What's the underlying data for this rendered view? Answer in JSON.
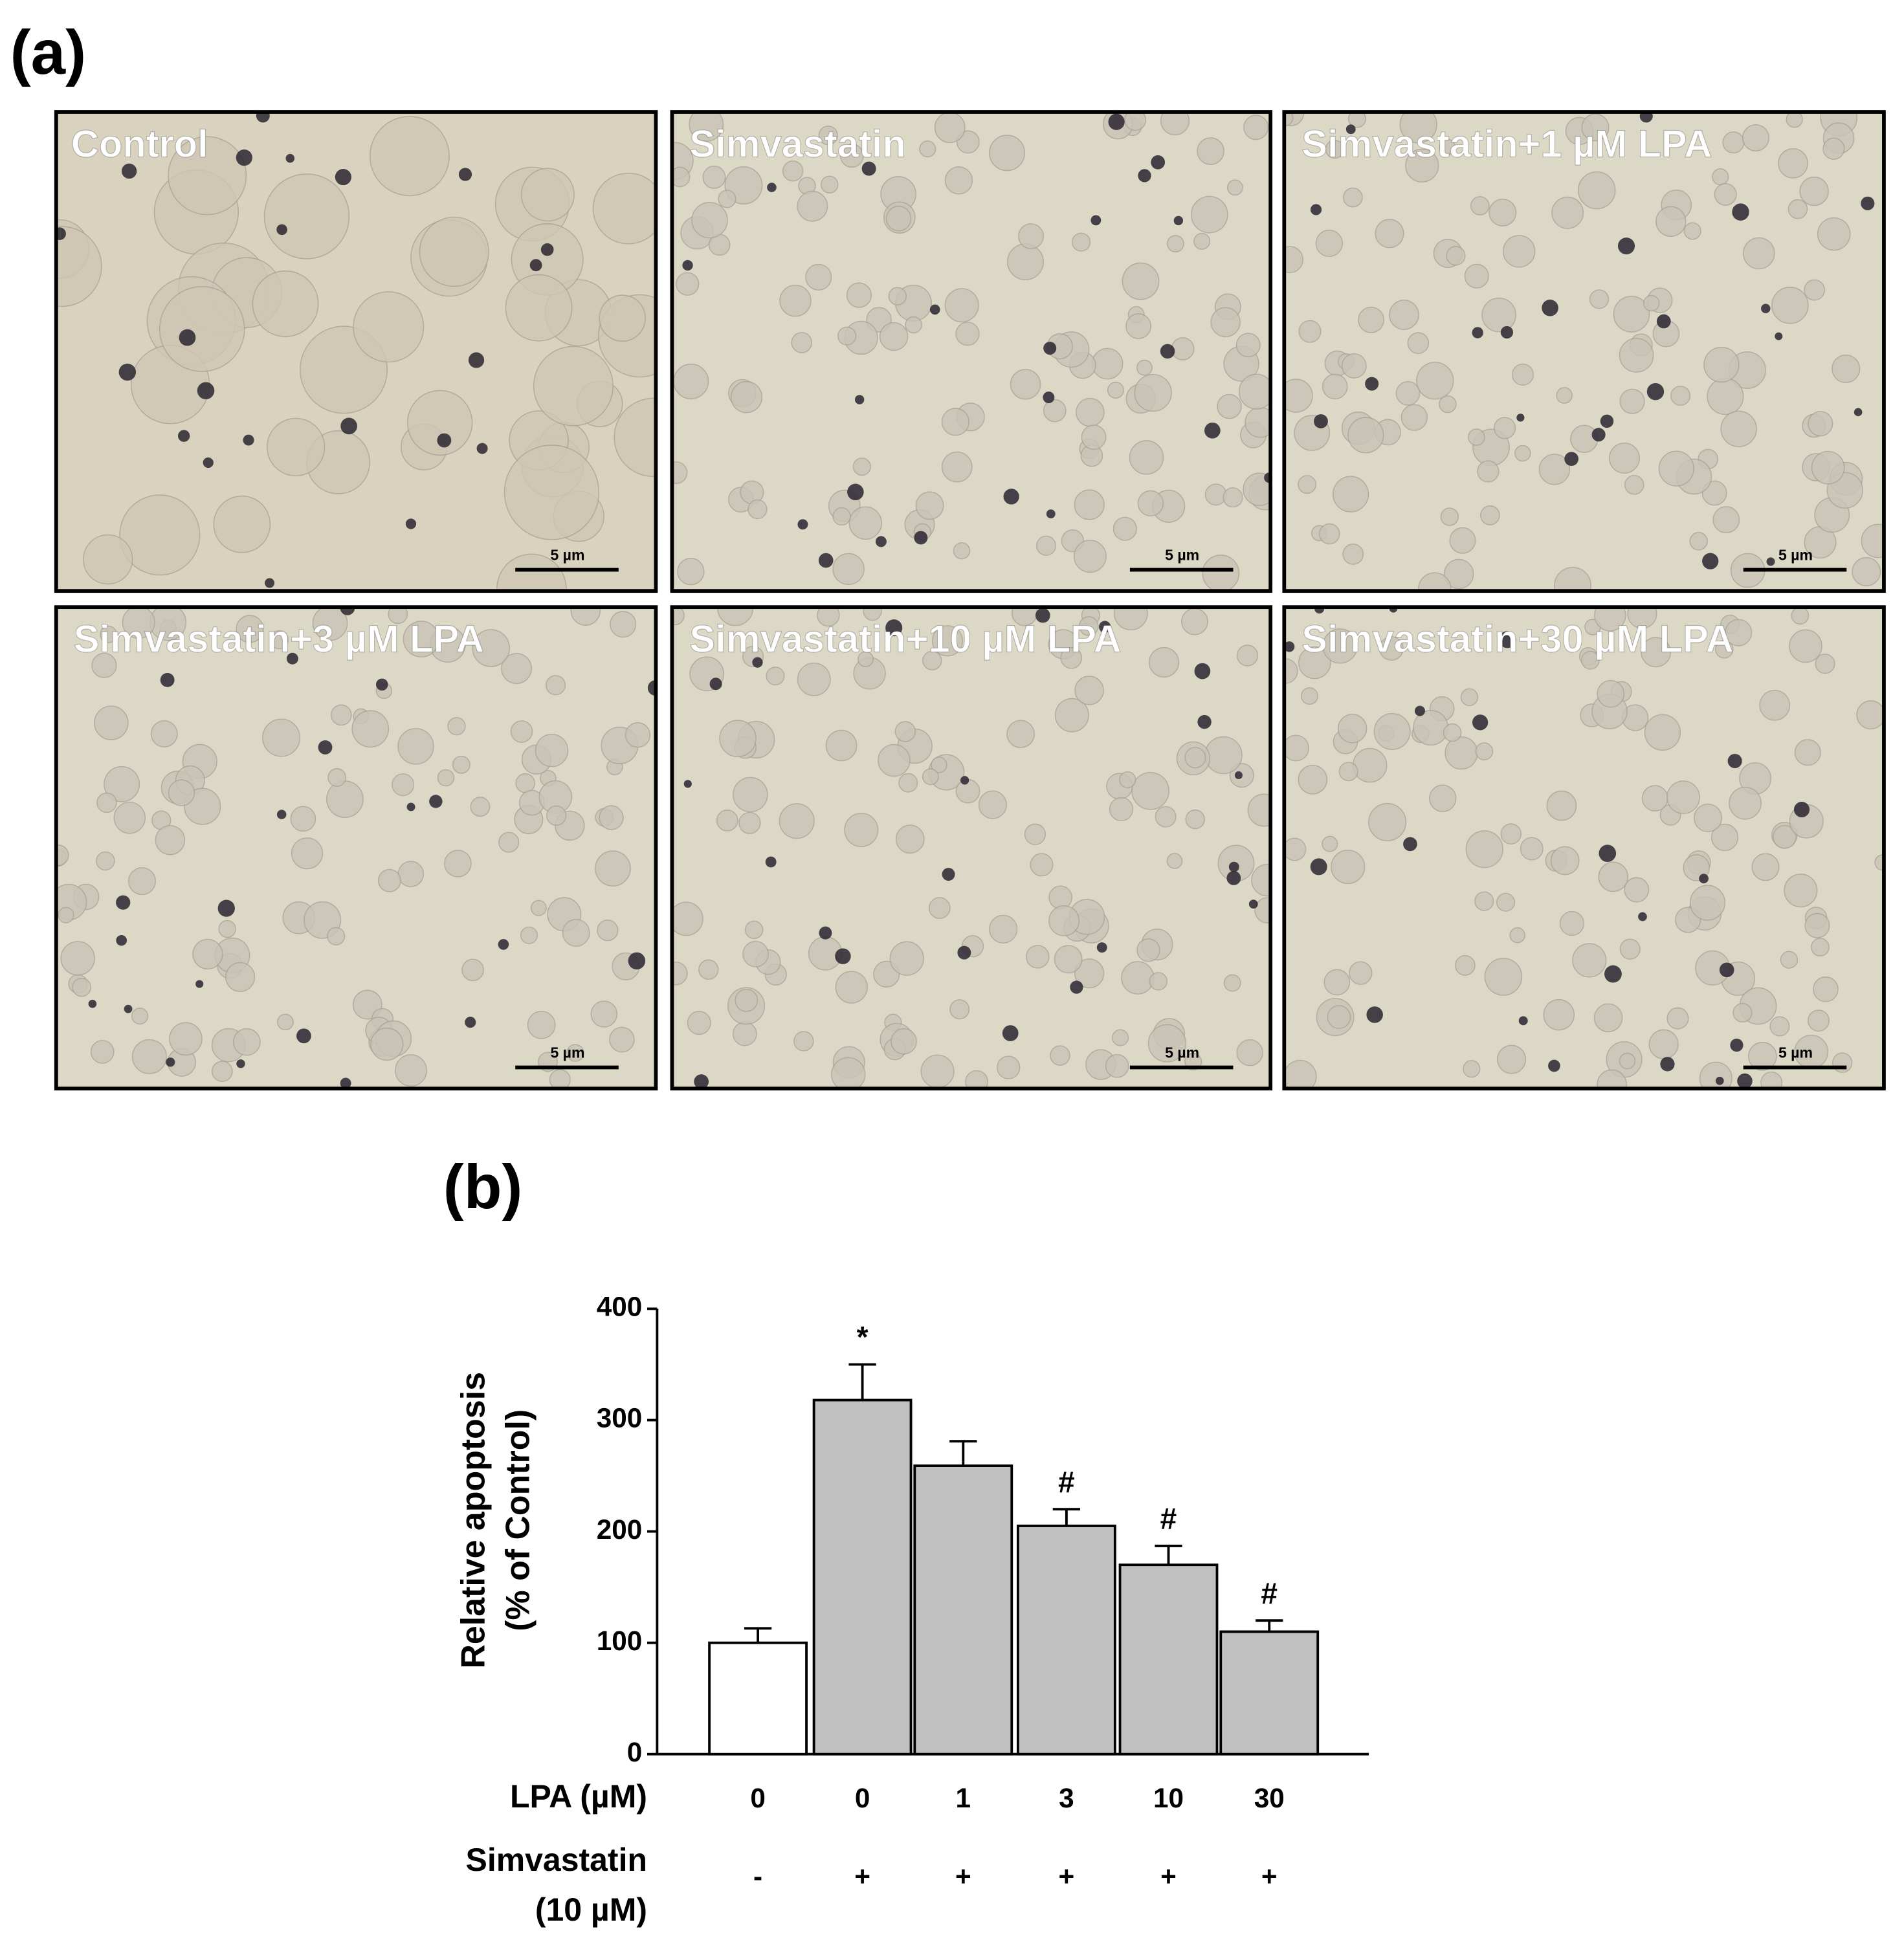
{
  "panel_a": {
    "label": "(a)",
    "images": [
      {
        "label": "Control",
        "scale_bar": "5 µm"
      },
      {
        "label": "Simvastatin",
        "scale_bar": "5 µm"
      },
      {
        "label": "Simvastatin+1 µM LPA",
        "scale_bar": "5 µm"
      },
      {
        "label": "Simvastatin+3 µM LPA",
        "scale_bar": "5 µm"
      },
      {
        "label": "Simvastatin+10 µM LPA",
        "scale_bar": "5 µm"
      },
      {
        "label": "Simvastatin+30 µM LPA",
        "scale_bar": "5 µm"
      }
    ]
  },
  "chart_data": {
    "type": "bar",
    "label": "(b)",
    "ylabel": [
      "Relative apoptosis",
      "(% of Control)"
    ],
    "lpa_label": "LPA (µM)",
    "simvastatin_label": [
      "Simvastatin",
      "(10 µM)"
    ],
    "categories": [
      "0",
      "0",
      "1",
      "3",
      "10",
      "30"
    ],
    "simvastatin": [
      "-",
      "+",
      "+",
      "+",
      "+",
      "+"
    ],
    "values": [
      100,
      318,
      259,
      205,
      170,
      110
    ],
    "errors": [
      13,
      32,
      22,
      15,
      17,
      10
    ],
    "annotations": [
      null,
      "*",
      null,
      "#",
      "#",
      "#"
    ],
    "colors": [
      "#ffffff",
      "#c0c0c0",
      "#c0c0c0",
      "#c0c0c0",
      "#c0c0c0",
      "#c0c0c0"
    ],
    "ylim": [
      0,
      400
    ],
    "yticks": [
      0,
      100,
      200,
      300,
      400
    ]
  }
}
